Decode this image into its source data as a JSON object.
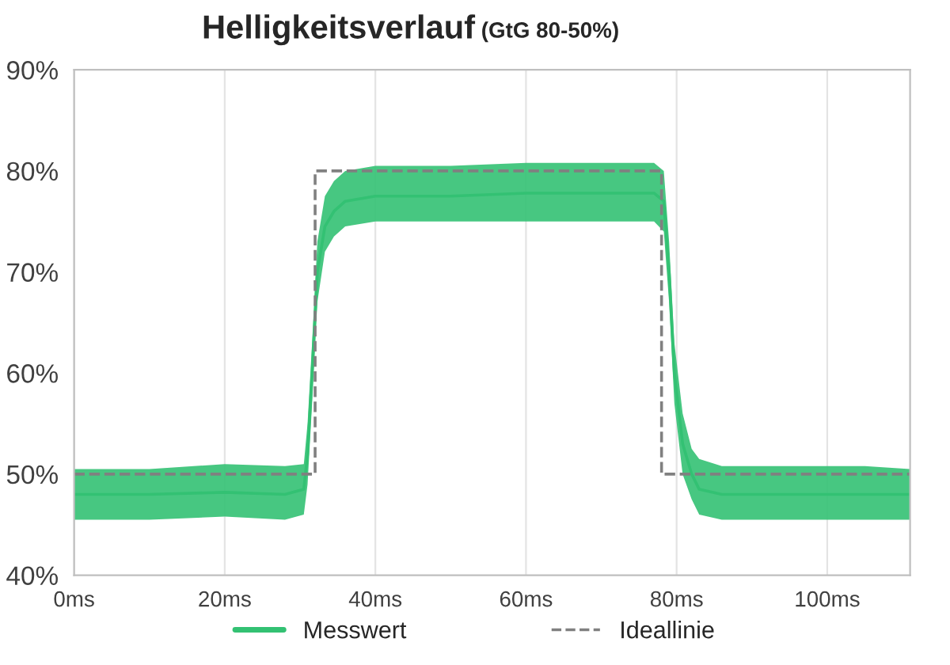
{
  "chart_data": {
    "type": "line",
    "title": "Helligkeitsverlauf",
    "subtitle": "(GtG 80-50%)",
    "xlim": [
      0,
      111
    ],
    "xticks": [
      {
        "value": 0,
        "label": "0ms"
      },
      {
        "value": 20,
        "label": "20ms"
      },
      {
        "value": 40,
        "label": "40ms"
      },
      {
        "value": 60,
        "label": "60ms"
      },
      {
        "value": 80,
        "label": "80ms"
      },
      {
        "value": 100,
        "label": "100ms"
      }
    ],
    "ylim": [
      40,
      90
    ],
    "yticks": [
      {
        "value": 40,
        "label": "40%"
      },
      {
        "value": 50,
        "label": "50%"
      },
      {
        "value": 60,
        "label": "60%"
      },
      {
        "value": 70,
        "label": "70%"
      },
      {
        "value": 80,
        "label": "80%"
      },
      {
        "value": 90,
        "label": "90%"
      }
    ],
    "grid": "x",
    "legend": "bottom",
    "series": [
      {
        "name": "Messwert",
        "color": "#33c173",
        "line_style": "solid",
        "x": [
          0,
          10,
          20,
          28,
          30.5,
          31,
          31.6,
          32.3,
          33.3,
          34.5,
          36,
          40,
          50,
          60,
          70,
          77,
          78.3,
          79,
          79.7,
          80.8,
          82,
          83,
          86,
          95,
          105,
          111
        ],
        "values": [
          48,
          48,
          48.2,
          48,
          48.5,
          52,
          60,
          70,
          74.5,
          76,
          77,
          77.5,
          77.5,
          77.8,
          77.8,
          77.8,
          77,
          70,
          60,
          53,
          50,
          48.5,
          48,
          48,
          48,
          48
        ],
        "lower": [
          45.5,
          45.5,
          45.8,
          45.5,
          46,
          49,
          57,
          67,
          72,
          73.5,
          74.5,
          75,
          75,
          75,
          75,
          75,
          74,
          67,
          57,
          50,
          47.5,
          46,
          45.5,
          45.5,
          45.5,
          45.5
        ],
        "upper": [
          50.5,
          50.5,
          51,
          50.8,
          51,
          55,
          63,
          73,
          77.5,
          79,
          80,
          80.5,
          80.5,
          80.8,
          80.8,
          80.8,
          80,
          73,
          63,
          56,
          52.5,
          51.5,
          50.8,
          50.8,
          50.8,
          50.5
        ]
      },
      {
        "name": "Ideallinie",
        "color": "#808080",
        "line_style": "dashed",
        "x": [
          0,
          32,
          32,
          78,
          78,
          111
        ],
        "values": [
          50,
          50,
          80,
          80,
          50,
          50
        ]
      }
    ]
  }
}
